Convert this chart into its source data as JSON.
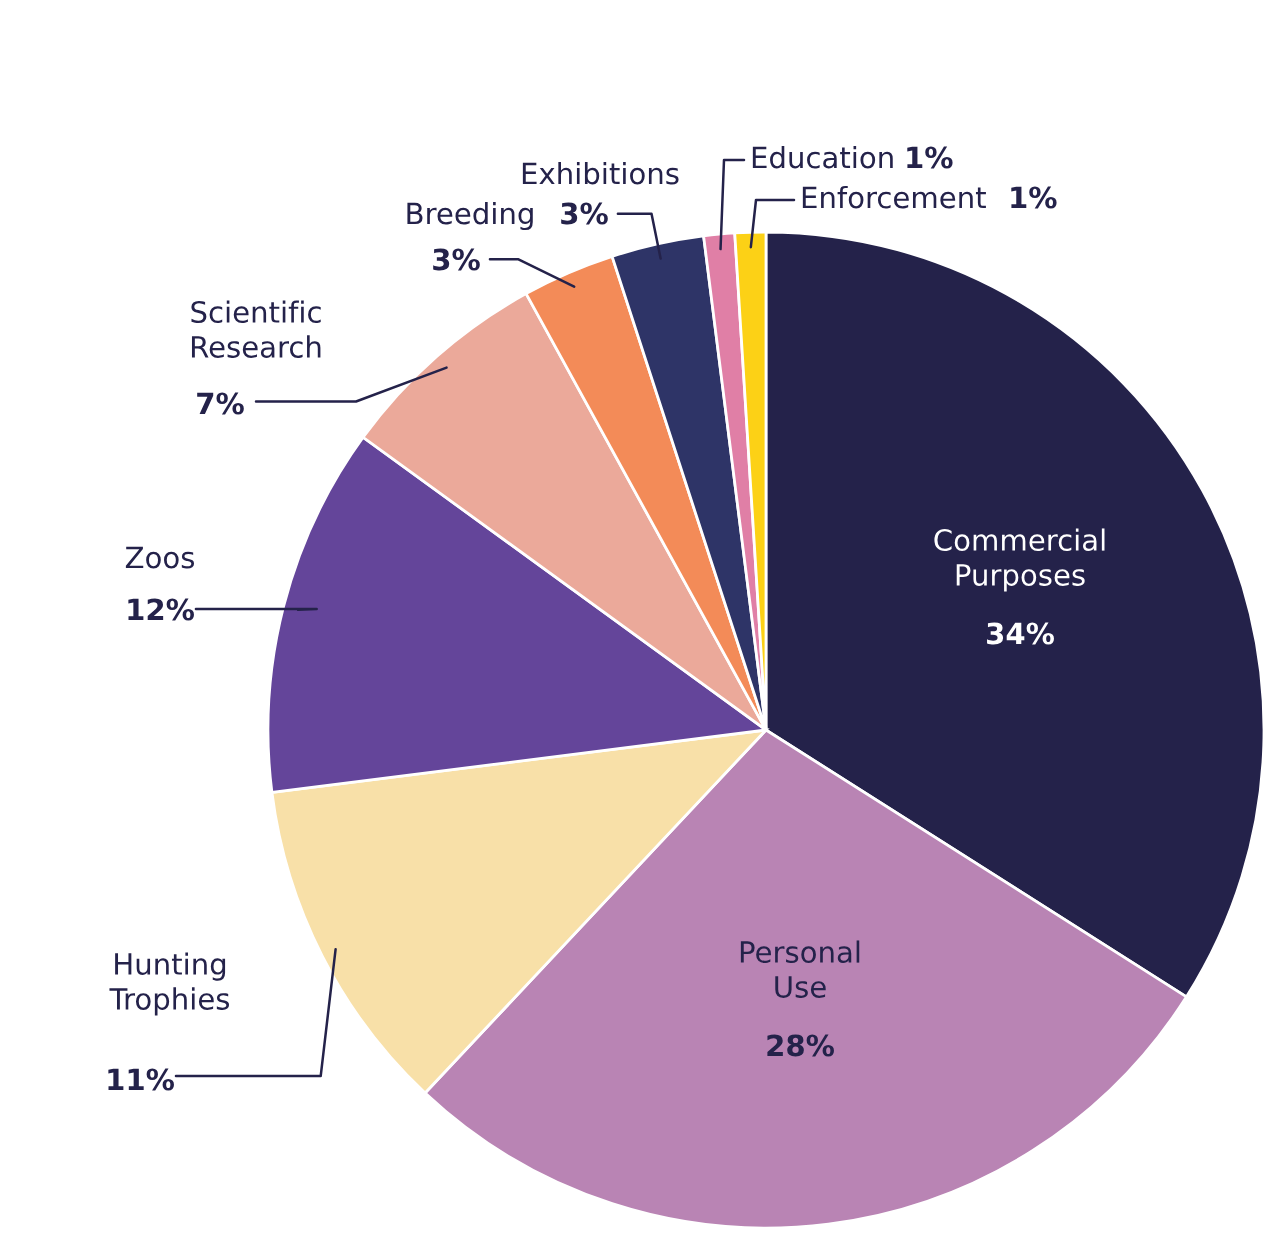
{
  "chart_data": {
    "type": "pie",
    "categories": [
      "Commercial\nPurposes",
      "Personal\nUse",
      "Hunting\nTrophies",
      "Zoos",
      "Scientific\nResearch",
      "Breeding",
      "Exhibitions",
      "Education",
      "Enforcement"
    ],
    "values": [
      34,
      28,
      11,
      12,
      7,
      3,
      3,
      1,
      1
    ],
    "colors": [
      "#24224a",
      "#b984b4",
      "#f8e0a8",
      "#64459a",
      "#eba99a",
      "#f38b58",
      "#2e3467",
      "#e07fa6",
      "#fcd116"
    ],
    "value_labels": [
      "34%",
      "28%",
      "11%",
      "12%",
      "7%",
      "3%",
      "3%",
      "1%",
      "1%"
    ],
    "legend": false
  }
}
